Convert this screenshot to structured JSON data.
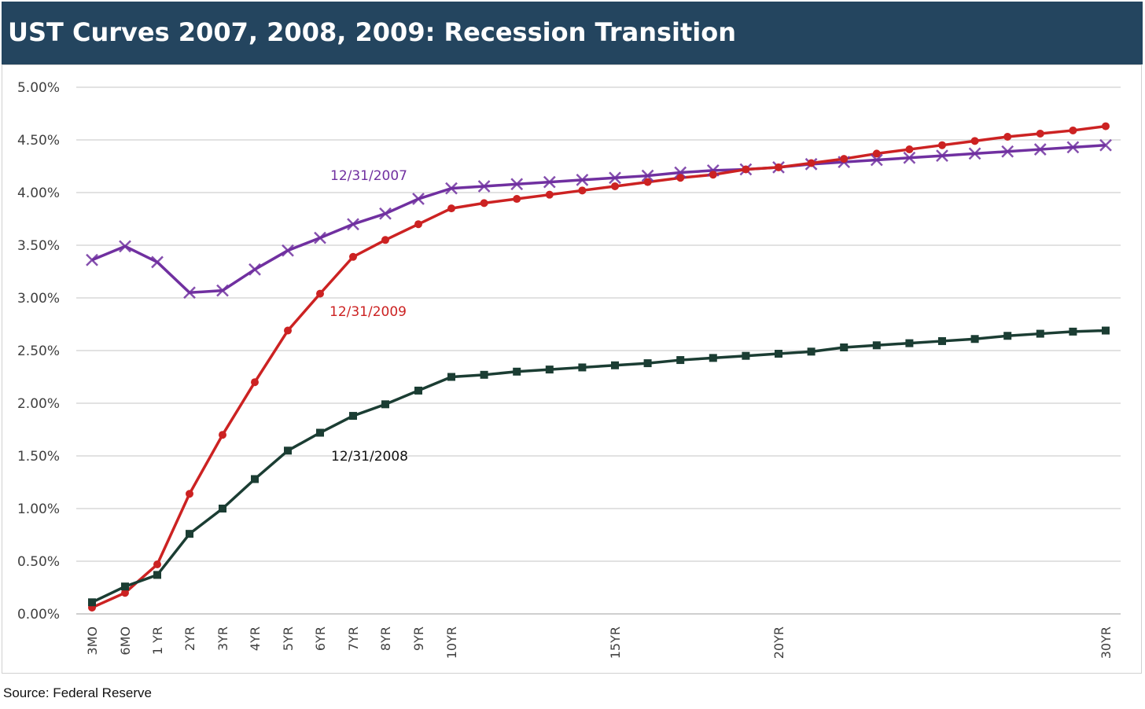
{
  "header": {
    "title": "UST Curves 2007, 2008, 2009: Recession Transition"
  },
  "source": "Source: Federal Reserve",
  "colors": {
    "header_bg": "#24455f",
    "s2007": "#7030a0",
    "s2009": "#cc2222",
    "s2008": "#1b3d33"
  },
  "chart_data": {
    "type": "line",
    "title": "UST Curves 2007, 2008, 2009: Recession Transition",
    "x_tick_labels": [
      {
        "x": 0.25,
        "label": "3MO"
      },
      {
        "x": 0.5,
        "label": "6MO"
      },
      {
        "x": 1,
        "label": "1 YR"
      },
      {
        "x": 2,
        "label": "2YR"
      },
      {
        "x": 3,
        "label": "3YR"
      },
      {
        "x": 4,
        "label": "4YR"
      },
      {
        "x": 5,
        "label": "5YR"
      },
      {
        "x": 6,
        "label": "6YR"
      },
      {
        "x": 7,
        "label": "7YR"
      },
      {
        "x": 8,
        "label": "8YR"
      },
      {
        "x": 9,
        "label": "9YR"
      },
      {
        "x": 10,
        "label": "10YR"
      },
      {
        "x": 15,
        "label": "15YR"
      },
      {
        "x": 20,
        "label": "20YR"
      },
      {
        "x": 30,
        "label": "30YR"
      }
    ],
    "y_ticks": [
      "0.00%",
      "0.50%",
      "1.00%",
      "1.50%",
      "2.00%",
      "2.50%",
      "3.00%",
      "3.50%",
      "4.00%",
      "4.50%",
      "5.00%"
    ],
    "ylim": [
      0,
      5
    ],
    "grid": true,
    "x": [
      0.25,
      0.5,
      1,
      2,
      3,
      4,
      5,
      6,
      7,
      8,
      9,
      10,
      11,
      12,
      13,
      14,
      15,
      16,
      17,
      18,
      19,
      20,
      21,
      22,
      23,
      24,
      25,
      26,
      27,
      28,
      29,
      30
    ],
    "series": [
      {
        "name": "12/31/2007",
        "marker": "x",
        "values": [
          3.36,
          3.49,
          3.34,
          3.05,
          3.07,
          3.27,
          3.45,
          3.57,
          3.7,
          3.8,
          3.94,
          4.04,
          4.06,
          4.08,
          4.1,
          4.12,
          4.14,
          4.16,
          4.19,
          4.21,
          4.22,
          4.24,
          4.27,
          4.29,
          4.31,
          4.33,
          4.35,
          4.37,
          4.39,
          4.41,
          4.43,
          4.45
        ]
      },
      {
        "name": "12/31/2009",
        "marker": "circle",
        "values": [
          0.06,
          0.2,
          0.47,
          1.14,
          1.7,
          2.2,
          2.69,
          3.04,
          3.39,
          3.55,
          3.7,
          3.85,
          3.9,
          3.94,
          3.98,
          4.02,
          4.06,
          4.1,
          4.14,
          4.17,
          4.22,
          4.24,
          4.28,
          4.32,
          4.37,
          4.41,
          4.45,
          4.49,
          4.53,
          4.56,
          4.59,
          4.63
        ]
      },
      {
        "name": "12/31/2008",
        "marker": "square",
        "values": [
          0.11,
          0.26,
          0.37,
          0.76,
          1.0,
          1.28,
          1.55,
          1.72,
          1.88,
          1.99,
          2.12,
          2.25,
          2.27,
          2.3,
          2.32,
          2.34,
          2.36,
          2.38,
          2.41,
          2.43,
          2.45,
          2.47,
          2.49,
          2.53,
          2.55,
          2.57,
          2.59,
          2.61,
          2.64,
          2.66,
          2.68,
          2.69
        ]
      }
    ]
  }
}
